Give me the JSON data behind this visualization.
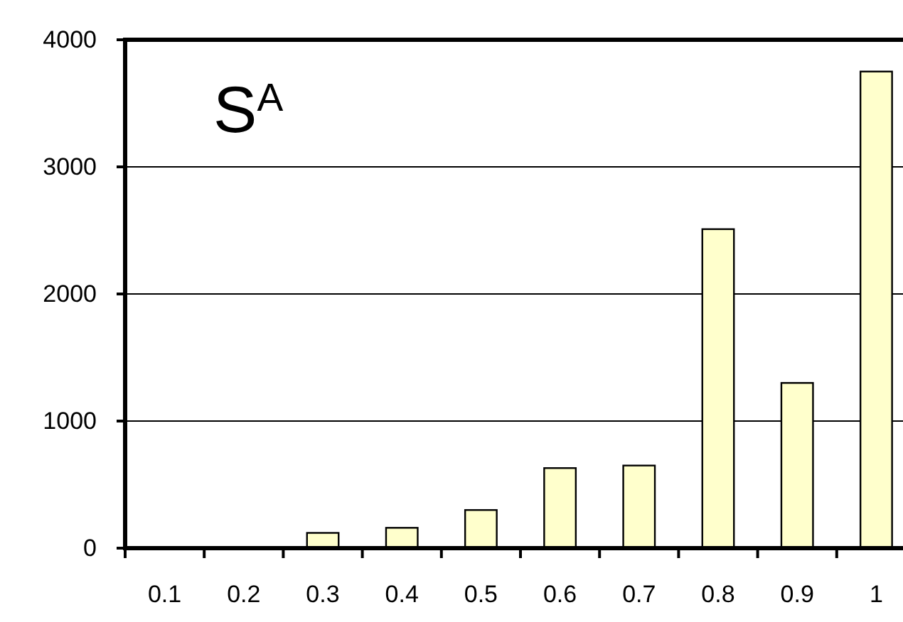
{
  "chart_data": {
    "type": "bar",
    "title": "S$^{A}$",
    "categories": [
      "0.1",
      "0.2",
      "0.3",
      "0.4",
      "0.5",
      "0.6",
      "0.7",
      "0.8",
      "0.9",
      "1"
    ],
    "values": [
      0,
      0,
      120,
      160,
      300,
      630,
      650,
      2510,
      1300,
      3750
    ],
    "color": "#ffffcc",
    "ylim": [
      0,
      4000
    ],
    "yticks": [
      0,
      1000,
      2000,
      3000,
      4000
    ],
    "grid": "y"
  }
}
